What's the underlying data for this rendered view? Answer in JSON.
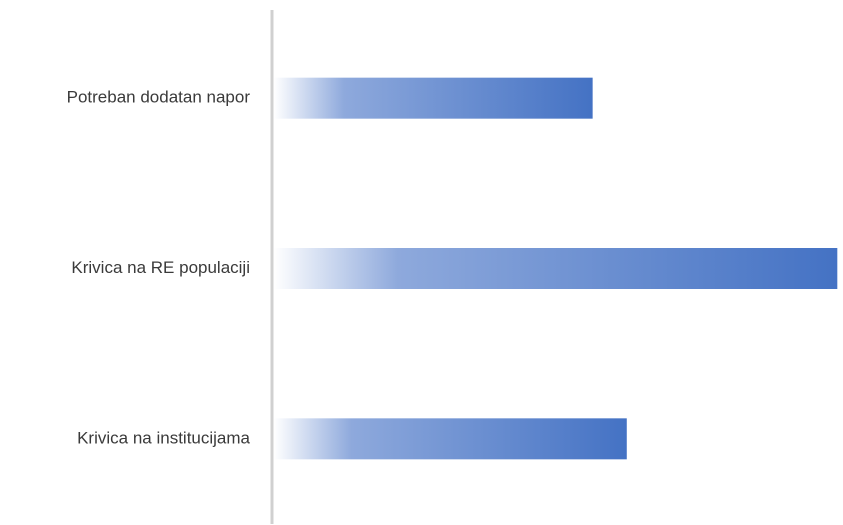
{
  "chart_data": {
    "type": "bar",
    "orientation": "horizontal",
    "title": "",
    "xlabel": "",
    "ylabel": "",
    "categories": [
      "Potreban dodatan napor",
      "Krivica na RE populaciji",
      "Krivica na institucijama"
    ],
    "values": [
      56,
      99,
      62
    ],
    "xlim": [
      0,
      100
    ],
    "grid": false,
    "legend": "none",
    "bar_color": "#4472c4",
    "bar_gradient_start": "#ffffff",
    "axis_color": "#d0d0d0"
  }
}
